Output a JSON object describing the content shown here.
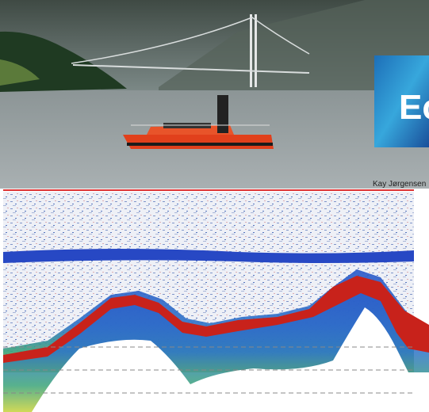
{
  "photo_credit": "Kay Jørgensen",
  "logo_text": "Ec"
}
